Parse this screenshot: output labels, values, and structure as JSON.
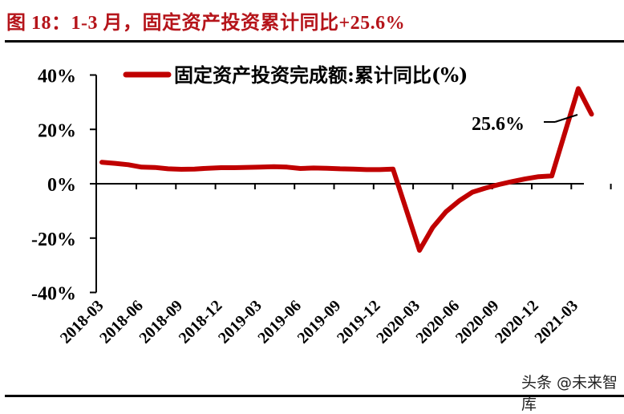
{
  "figure": {
    "title": "图 18：1-3 月，固定资产投资累计同比+25.6%",
    "watermark": "头条 @未来智库"
  },
  "colors": {
    "title": "#b5141a",
    "series": "#c00000",
    "axis": "#000000"
  },
  "chart_data": {
    "type": "line",
    "title": "图 18：1-3 月，固定资产投资累计同比+25.6%",
    "xlabel": "",
    "ylabel": "",
    "ylim": [
      -40,
      40
    ],
    "yticks": [
      "40%",
      "20%",
      "0%",
      "-20%",
      "-40%"
    ],
    "ytick_values": [
      40,
      20,
      0,
      -20,
      -40
    ],
    "xtick_labels": [
      "2018-03",
      "2018-06",
      "2018-09",
      "2018-12",
      "2019-03",
      "2019-06",
      "2019-09",
      "2019-12",
      "2020-03",
      "2020-06",
      "2020-09",
      "2020-12",
      "2021-03"
    ],
    "grid": false,
    "legend_position": "top",
    "annotations": [
      {
        "text": "25.6%",
        "x": "2021-03",
        "y": 25.6
      }
    ],
    "x": [
      "2018-02",
      "2018-03",
      "2018-04",
      "2018-05",
      "2018-06",
      "2018-07",
      "2018-08",
      "2018-09",
      "2018-10",
      "2018-11",
      "2018-12",
      "2019-02",
      "2019-03",
      "2019-04",
      "2019-05",
      "2019-06",
      "2019-07",
      "2019-08",
      "2019-09",
      "2019-10",
      "2019-11",
      "2019-12",
      "2020-02",
      "2020-03",
      "2020-04",
      "2020-05",
      "2020-06",
      "2020-07",
      "2020-08",
      "2020-09",
      "2020-10",
      "2020-11",
      "2020-12",
      "2021-02",
      "2021-03"
    ],
    "series": [
      {
        "name": "固定资产投资完成额:累计同比(%)",
        "values": [
          7.9,
          7.5,
          7.0,
          6.1,
          6.0,
          5.5,
          5.3,
          5.4,
          5.7,
          5.9,
          5.9,
          6.1,
          6.3,
          6.1,
          5.6,
          5.8,
          5.7,
          5.5,
          5.4,
          5.2,
          5.2,
          5.4,
          -24.5,
          -16.1,
          -10.3,
          -6.3,
          -3.1,
          -1.6,
          -0.3,
          0.8,
          1.8,
          2.6,
          2.9,
          35.0,
          25.6
        ]
      }
    ]
  },
  "legend": {
    "label": "固定资产投资完成额:累计同比(%)"
  },
  "annotation": {
    "label": "25.6%"
  }
}
